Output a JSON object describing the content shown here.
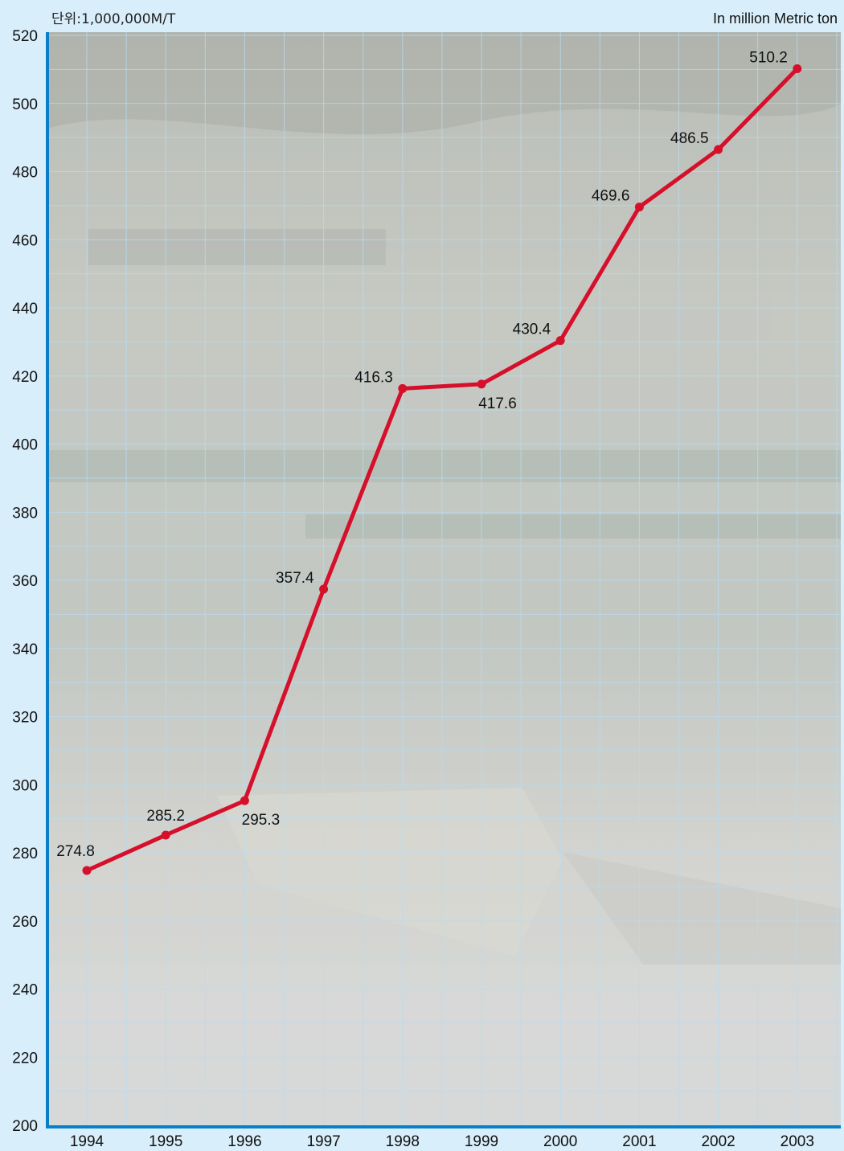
{
  "header": {
    "unit_label": "단위:1,000,000M/T",
    "subtitle": "In million Metric ton"
  },
  "colors": {
    "page_background": "#d9eefb",
    "plot_background": "#c9ccc7",
    "grid": "#b8dcf2",
    "axis": "#0a7fc8",
    "line": "#d60f2a"
  },
  "chart_data": {
    "type": "line",
    "categories": [
      "1994",
      "1995",
      "1996",
      "1997",
      "1998",
      "1999",
      "2000",
      "2001",
      "2002",
      "2003"
    ],
    "series": [
      {
        "values": [
          274.8,
          285.2,
          295.3,
          357.4,
          416.3,
          417.6,
          430.4,
          469.6,
          486.5,
          510.2
        ],
        "labels": [
          "274.8",
          "285.2",
          "295.3",
          "357.4",
          "416.3",
          "417.6",
          "430.4",
          "469.6",
          "486.5",
          "510.2"
        ]
      }
    ],
    "ylim": [
      200,
      520
    ],
    "yticks": [
      200,
      220,
      240,
      260,
      280,
      300,
      320,
      340,
      360,
      380,
      400,
      420,
      440,
      460,
      480,
      500,
      520
    ],
    "grid": true,
    "background": "harbor container port photograph"
  }
}
